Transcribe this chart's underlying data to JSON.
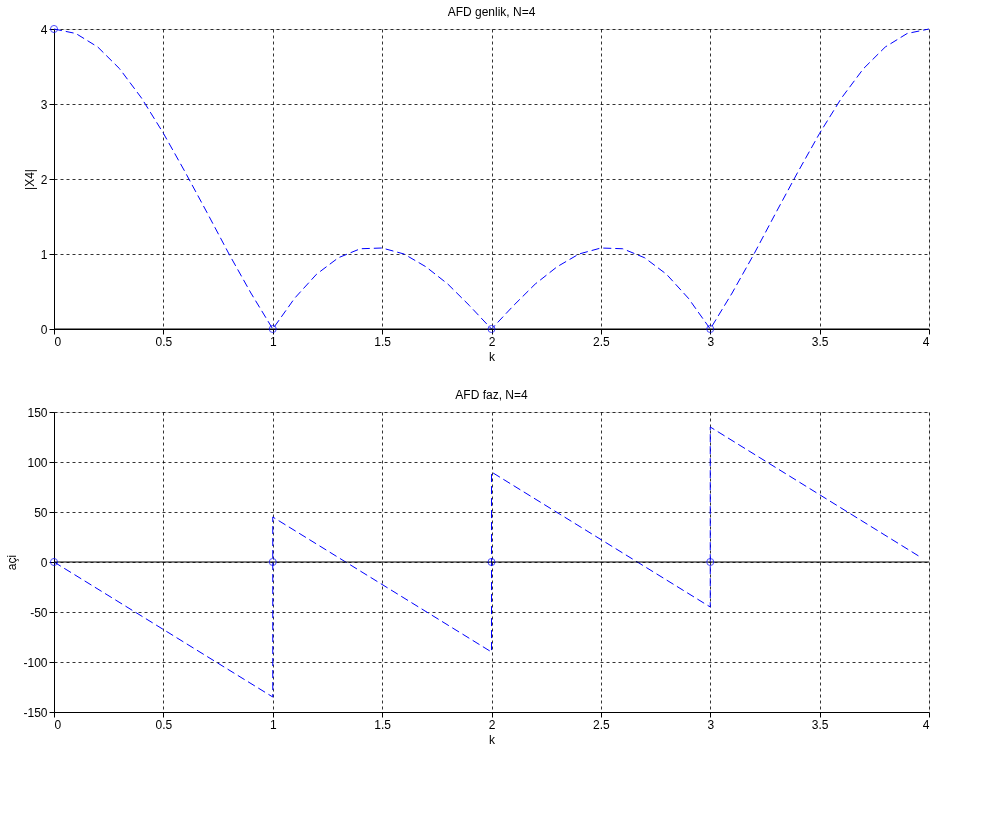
{
  "chart_data": [
    {
      "type": "line",
      "title": "AFD genlik, N=4",
      "xlabel": "k",
      "ylabel": "|X4|",
      "xlim": [
        0,
        4
      ],
      "ylim": [
        0,
        4
      ],
      "xticks": [
        0,
        0.5,
        1,
        1.5,
        2,
        2.5,
        3,
        3.5,
        4
      ],
      "yticks": [
        0,
        1,
        2,
        3,
        4
      ],
      "grid": true,
      "ref_lines": [
        {
          "axis": "y",
          "value": 0,
          "color": "#000000"
        }
      ],
      "series": [
        {
          "color": "#0000ff",
          "line_style": "dashed",
          "marker": "none",
          "x": [
            0,
            0.1,
            0.2,
            0.3,
            0.4,
            0.5,
            0.6,
            0.7,
            0.8,
            0.9,
            1.0,
            1.1,
            1.2,
            1.3,
            1.4,
            1.5,
            1.6,
            1.7,
            1.8,
            1.9,
            2.0,
            2.1,
            2.2,
            2.3,
            2.4,
            2.5,
            2.6,
            2.7,
            2.8,
            2.9,
            3.0,
            3.1,
            3.2,
            3.3,
            3.4,
            3.5,
            3.6,
            3.7,
            3.8,
            3.9,
            4.0
          ],
          "values": [
            4,
            3.94,
            3.76,
            3.47,
            3.08,
            2.61,
            2.09,
            1.55,
            1.0,
            0.48,
            0,
            0.41,
            0.73,
            0.95,
            1.07,
            1.08,
            1.0,
            0.83,
            0.6,
            0.31,
            0,
            0.31,
            0.6,
            0.83,
            1.0,
            1.08,
            1.07,
            0.95,
            0.73,
            0.41,
            0,
            0.48,
            1.0,
            1.55,
            2.09,
            2.61,
            3.08,
            3.47,
            3.76,
            3.94,
            4
          ]
        },
        {
          "type": "scatter",
          "color": "#0000ff",
          "marker": "circle",
          "x": [
            0,
            1,
            2,
            3
          ],
          "values": [
            4,
            0,
            0,
            0
          ]
        }
      ]
    },
    {
      "type": "line",
      "title": "AFD faz, N=4",
      "xlabel": "k",
      "ylabel": "açi",
      "xlim": [
        0,
        4
      ],
      "ylim": [
        -150,
        150
      ],
      "xticks": [
        0,
        0.5,
        1,
        1.5,
        2,
        2.5,
        3,
        3.5,
        4
      ],
      "yticks": [
        -150,
        -100,
        -50,
        0,
        50,
        100,
        150
      ],
      "grid": true,
      "ref_lines": [
        {
          "axis": "y",
          "value": 0,
          "color": "#000000"
        }
      ],
      "series": [
        {
          "color": "#0000ff",
          "line_style": "dashed",
          "marker": "none",
          "x": [
            0,
            1,
            1,
            2,
            2,
            3,
            3,
            3.96
          ],
          "values": [
            0,
            -135,
            45,
            -90,
            90,
            -45,
            135,
            5
          ]
        },
        {
          "type": "scatter",
          "color": "#0000ff",
          "marker": "circle",
          "x": [
            0,
            1,
            2,
            3
          ],
          "values": [
            0,
            0,
            0,
            0
          ]
        }
      ]
    }
  ]
}
